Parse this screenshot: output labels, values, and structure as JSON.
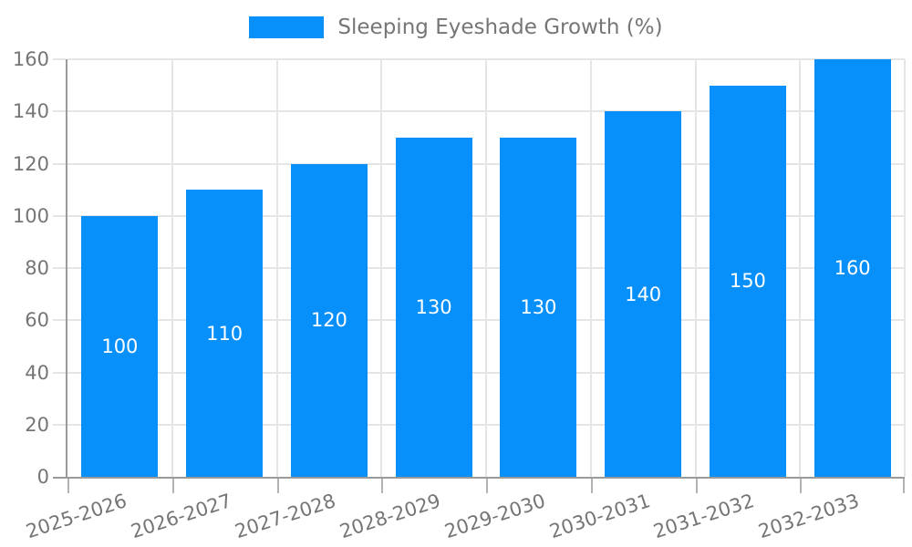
{
  "chart_data": {
    "type": "bar",
    "legend": "Sleeping Eyeshade Growth (%)",
    "categories": [
      "2025-2026",
      "2026-2027",
      "2027-2028",
      "2028-2029",
      "2029-2030",
      "2030-2031",
      "2031-2032",
      "2032-2033"
    ],
    "values": [
      100,
      110,
      120,
      130,
      130,
      140,
      150,
      160
    ],
    "ylim": [
      0,
      160
    ],
    "ytick_step": 20,
    "yticks": [
      0,
      20,
      40,
      60,
      80,
      100,
      120,
      140,
      160
    ],
    "grid": true,
    "legend_position": "top",
    "bar_value_labels_shown": true,
    "colors": {
      "bar": "#0890fa",
      "value_label": "#ffffff",
      "axis_text": "#757575",
      "legend_text": "#767676",
      "grid_line": "#e5e5e5",
      "axis_line": "#9a9a9a",
      "background": "#ffffff"
    }
  }
}
